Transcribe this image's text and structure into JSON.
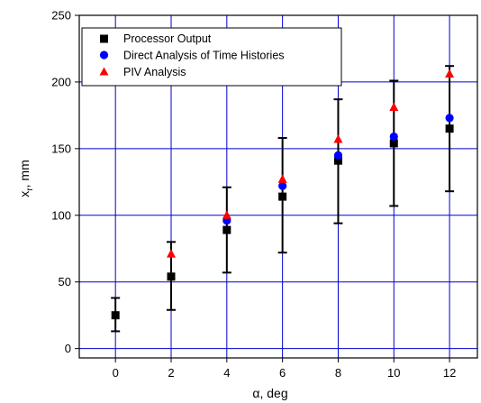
{
  "chart_data": {
    "type": "scatter",
    "xlabel": "α, deg",
    "ylabel_main": "x",
    "ylabel_sub": "r",
    "ylabel_tail": ", mm",
    "xlim": [
      -1.3,
      13.0
    ],
    "ylim": [
      -7,
      250
    ],
    "xticks": [
      0,
      2,
      4,
      6,
      8,
      10,
      12
    ],
    "yticks": [
      0,
      50,
      100,
      150,
      200,
      250
    ],
    "grid": true,
    "legend_position": "top-left",
    "series": [
      {
        "name": "Processor Output",
        "marker": "square",
        "color": "#000000",
        "x": [
          0,
          2,
          4,
          6,
          8,
          10,
          12
        ],
        "y": [
          25,
          54,
          89,
          114,
          141,
          154,
          165
        ],
        "err_low": [
          13,
          29,
          57,
          72,
          94,
          107,
          118
        ],
        "err_high": [
          38,
          80,
          121,
          158,
          187,
          201,
          212
        ]
      },
      {
        "name": "Direct Analysis of Time Histories",
        "marker": "circle",
        "color": "#0000ff",
        "x": [
          4,
          6,
          8,
          10,
          12
        ],
        "y": [
          96,
          122,
          145,
          159,
          173
        ]
      },
      {
        "name": "PIV Analysis",
        "marker": "triangle",
        "color": "#ff0000",
        "x": [
          2,
          4,
          6,
          8,
          10,
          12
        ],
        "y": [
          71,
          100,
          127,
          157,
          181,
          206
        ]
      }
    ]
  }
}
